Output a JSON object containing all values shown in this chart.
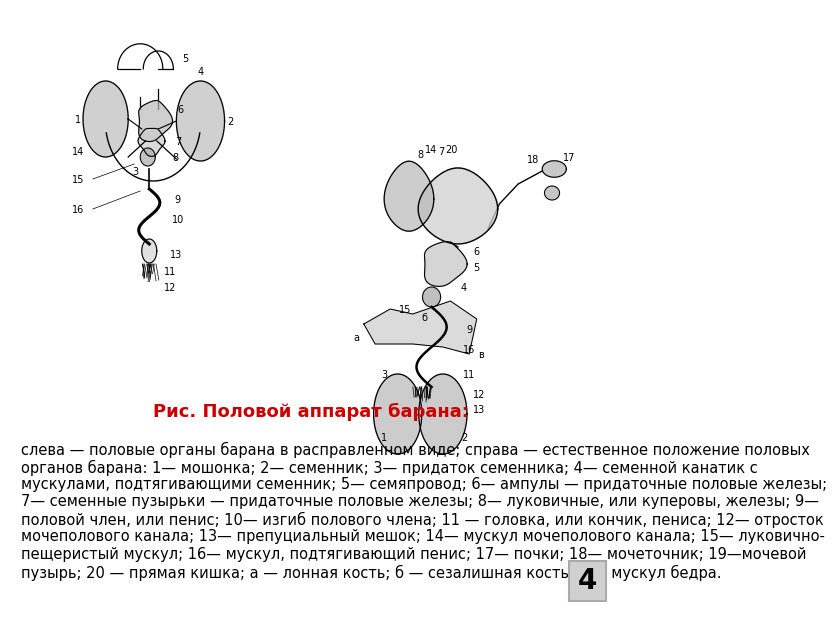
{
  "background_color": "#ffffff",
  "title": "Рис. Половой аппарат барана:",
  "title_fontsize": 13,
  "title_bold": true,
  "title_color": "#cc0000",
  "description_lines": [
    "слева — половые органы барана в расправленном виде; справа — естественное положение половых",
    "органов барана: 1— мошонка; 2— семенник; 3— придаток семенника; 4— семенной канатик с",
    "мускулами, подтягивающими семенник; 5— семяпровод; 6— ампулы — придаточные половые железы;",
    "7— семенные пузырьки — придаточные половые железы; 8— луковичные, или куперовы, железы; 9—",
    "половой член, или пенис; 10— изгиб полового члена; 11 — головка, или кончик, пениса; 12— отросток",
    "мочеполового канала; 13— препуциальный мешок; 14— мускул мочеполового канала; 15— луковично-",
    "пещеристый мускул; 16— мускул, подтягивающий пенис; 17— почки; 18— мочеточник; 19—мочевой",
    "пузырь; 20 — прямая кишка; а — лонная кость; б — сезалишная кость; в — мускул бедра."
  ],
  "desc_fontsize": 10.5,
  "page_number": "4"
}
